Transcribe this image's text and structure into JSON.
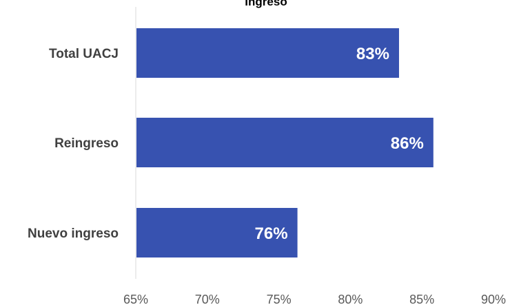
{
  "chart_data": {
    "type": "bar",
    "orientation": "horizontal",
    "title": "Ingreso",
    "categories": [
      "Total UACJ",
      "Reingreso",
      "Nuevo ingreso"
    ],
    "values": [
      83.4,
      85.8,
      76.3
    ],
    "data_labels": [
      "83%",
      "86%",
      "76%"
    ],
    "xlim": [
      65,
      90
    ],
    "xticks": [
      65,
      70,
      75,
      80,
      85,
      90
    ],
    "xtick_labels": [
      "65%",
      "70%",
      "75%",
      "80%",
      "85%",
      "90%"
    ],
    "xlabel": "",
    "ylabel": "",
    "grid": false,
    "legend": "none",
    "bar_color": "#3752B0",
    "axis_color": "#D9D9D9"
  }
}
